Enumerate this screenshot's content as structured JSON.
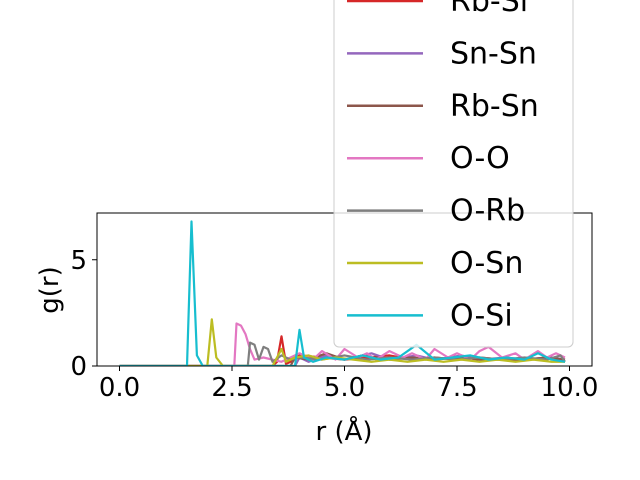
{
  "chart_data": {
    "type": "line",
    "xlabel": "r (Å)",
    "ylabel": "g(r)",
    "xlim": [
      -0.5,
      10.5
    ],
    "ylim": [
      0,
      7.2
    ],
    "xticks": [
      0.0,
      2.5,
      5.0,
      7.5,
      10.0
    ],
    "xtick_labels": [
      "0.0",
      "2.5",
      "5.0",
      "7.5",
      "10.0"
    ],
    "yticks": [
      0,
      5
    ],
    "ytick_labels": [
      "0",
      "5"
    ],
    "grid": false,
    "legend_position": "upper-right, overflowing above the axes",
    "series": [
      {
        "name": "Rb-Si",
        "color": "#d62728",
        "x": [
          0,
          3.4,
          3.5,
          3.6,
          3.7,
          3.8,
          4.0,
          4.5,
          5.0,
          5.5,
          6.0,
          6.5,
          7.0,
          7.5,
          8.0,
          8.5,
          9.0,
          9.5,
          9.9
        ],
        "y": [
          0,
          0,
          0.2,
          1.4,
          0.1,
          0.2,
          0.5,
          0.4,
          0.3,
          0.4,
          0.5,
          0.3,
          0.4,
          0.3,
          0.4,
          0.3,
          0.3,
          0.4,
          0.3
        ]
      },
      {
        "name": "Sn-Sn",
        "color": "#9467bd",
        "x": [
          0,
          3.9,
          4.0,
          4.2,
          4.6,
          5.0,
          5.6,
          6.0,
          6.6,
          7.0,
          7.6,
          8.0,
          8.6,
          9.0,
          9.6,
          9.9
        ],
        "y": [
          0,
          0,
          0.4,
          0.2,
          0.5,
          0.3,
          0.6,
          0.3,
          0.5,
          0.3,
          0.5,
          0.3,
          0.4,
          0.3,
          0.4,
          0.3
        ]
      },
      {
        "name": "Rb-Sn",
        "color": "#8c564b",
        "x": [
          0,
          3.8,
          3.9,
          4.2,
          4.6,
          5.0,
          5.4,
          6.0,
          6.5,
          7.0,
          7.5,
          8.0,
          8.5,
          9.0,
          9.5,
          9.9
        ],
        "y": [
          0,
          0,
          0.4,
          0.3,
          0.6,
          0.3,
          0.5,
          0.3,
          0.4,
          0.3,
          0.4,
          0.3,
          0.3,
          0.3,
          0.4,
          0.3
        ]
      },
      {
        "name": "O-O",
        "color": "#e377c2",
        "x": [
          0,
          2.55,
          2.6,
          2.7,
          2.8,
          2.9,
          3.0,
          3.2,
          3.6,
          4.0,
          4.3,
          4.5,
          4.8,
          5.0,
          5.3,
          5.5,
          5.7,
          6.0,
          6.3,
          6.5,
          6.8,
          7.0,
          7.3,
          7.5,
          7.8,
          8.0,
          8.2,
          8.5,
          8.8,
          9.0,
          9.3,
          9.5,
          9.7,
          9.9
        ],
        "y": [
          0,
          0,
          2.0,
          1.9,
          1.5,
          0.8,
          0.3,
          0.4,
          0.2,
          0.6,
          0.3,
          0.7,
          0.3,
          0.8,
          0.4,
          0.6,
          0.3,
          0.7,
          0.4,
          0.6,
          0.3,
          0.8,
          0.4,
          0.6,
          0.3,
          0.7,
          0.9,
          0.4,
          0.6,
          0.3,
          0.7,
          0.4,
          0.6,
          0.4
        ]
      },
      {
        "name": "O-Rb",
        "color": "#7f7f7f",
        "x": [
          0,
          2.85,
          2.9,
          3.0,
          3.1,
          3.2,
          3.3,
          3.4,
          3.6,
          3.8,
          4.0,
          4.5,
          5.0,
          5.5,
          6.0,
          6.5,
          7.0,
          7.5,
          8.0,
          8.5,
          9.0,
          9.5,
          9.8,
          9.9
        ],
        "y": [
          0,
          0,
          1.1,
          1.0,
          0.3,
          0.9,
          0.8,
          0.2,
          0.5,
          0.3,
          0.4,
          0.3,
          0.5,
          0.3,
          0.4,
          0.3,
          0.4,
          0.3,
          0.4,
          0.3,
          0.4,
          0.3,
          0.5,
          0.2
        ]
      },
      {
        "name": "O-Sn",
        "color": "#bcbd22",
        "x": [
          0,
          1.95,
          2.05,
          2.15,
          2.3,
          3.4,
          3.6,
          3.7,
          3.9,
          4.2,
          4.5,
          4.8,
          5.2,
          5.6,
          6.0,
          6.4,
          6.8,
          7.2,
          7.6,
          8.0,
          8.4,
          8.8,
          9.2,
          9.6,
          9.9
        ],
        "y": [
          0,
          0,
          2.2,
          0.4,
          0,
          0,
          0.8,
          0.2,
          0.4,
          0.5,
          0.3,
          0.4,
          0.3,
          0.2,
          0.3,
          0.2,
          0.3,
          0.2,
          0.3,
          0.2,
          0.3,
          0.2,
          0.3,
          0.2,
          0.2
        ]
      },
      {
        "name": "O-Si",
        "color": "#17becf",
        "x": [
          0,
          1.5,
          1.6,
          1.72,
          1.85,
          3.9,
          4.0,
          4.1,
          4.3,
          4.6,
          5.0,
          5.4,
          5.8,
          6.2,
          6.6,
          7.0,
          7.4,
          7.8,
          8.2,
          8.6,
          9.0,
          9.3,
          9.6,
          9.9
        ],
        "y": [
          0,
          0,
          6.8,
          0.5,
          0,
          0,
          1.7,
          0.4,
          0.2,
          0.4,
          0.3,
          0.5,
          0.3,
          0.4,
          1.0,
          0.3,
          0.4,
          0.5,
          0.3,
          0.4,
          0.3,
          0.6,
          0.3,
          0.2
        ]
      }
    ]
  }
}
